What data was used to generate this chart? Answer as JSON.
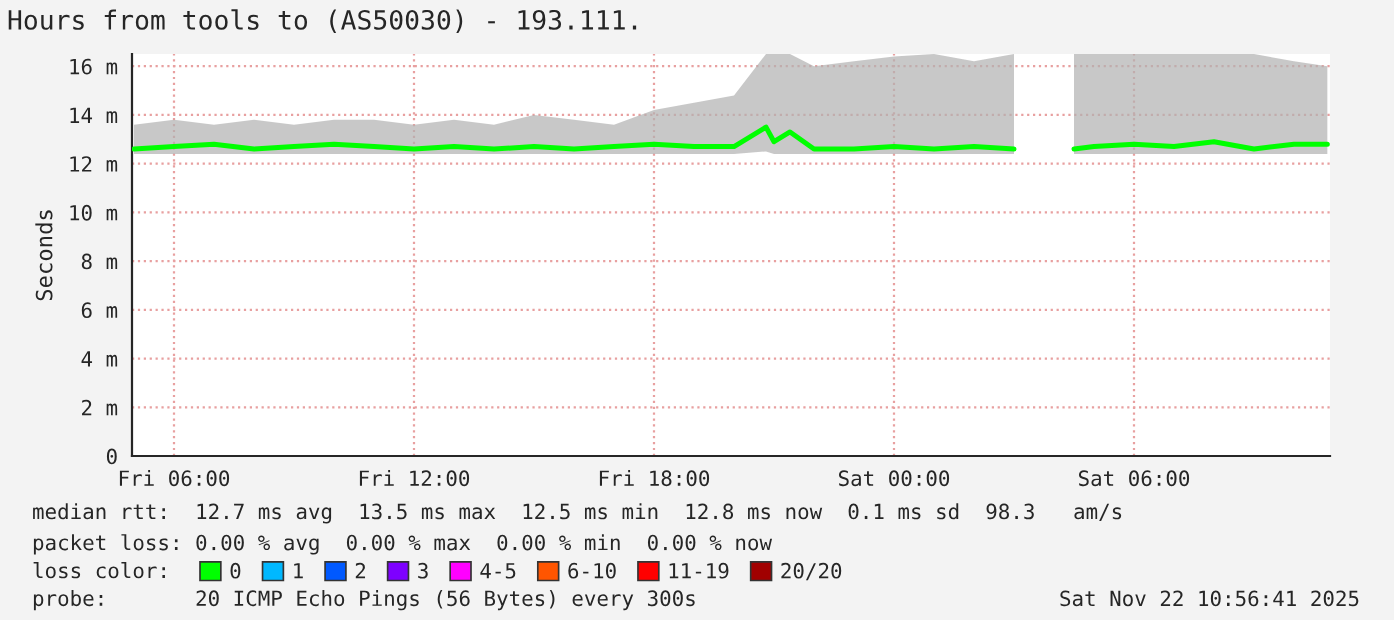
{
  "chart_data": {
    "type": "line",
    "title": "Hours from tools to (AS50030) - 193.111.",
    "ylabel": "Seconds",
    "x": [
      "2025-11-21T05:00",
      "2025-11-21T06:00",
      "2025-11-21T07:00",
      "2025-11-21T08:00",
      "2025-11-21T09:00",
      "2025-11-21T10:00",
      "2025-11-21T11:00",
      "2025-11-21T12:00",
      "2025-11-21T13:00",
      "2025-11-21T14:00",
      "2025-11-21T15:00",
      "2025-11-21T16:00",
      "2025-11-21T17:00",
      "2025-11-21T18:00",
      "2025-11-21T19:00",
      "2025-11-21T20:00",
      "2025-11-21T20:48",
      "2025-11-21T21:00",
      "2025-11-21T21:24",
      "2025-11-21T22:00",
      "2025-11-21T23:00",
      "2025-11-22T00:00",
      "2025-11-22T01:00",
      "2025-11-22T02:00",
      "2025-11-22T03:00",
      "2025-11-22T04:00",
      "2025-11-22T04:30",
      "2025-11-22T05:00",
      "2025-11-22T06:00",
      "2025-11-22T07:00",
      "2025-11-22T08:00",
      "2025-11-22T09:00",
      "2025-11-22T10:00",
      "2025-11-22T10:50"
    ],
    "series": [
      {
        "name": "0",
        "color": "#00ff00",
        "values": [
          12.6,
          12.7,
          12.8,
          12.6,
          12.7,
          12.8,
          12.7,
          12.6,
          12.7,
          12.6,
          12.7,
          12.6,
          12.7,
          12.8,
          12.7,
          12.7,
          13.5,
          12.9,
          13.3,
          12.6,
          12.6,
          12.7,
          12.6,
          12.7,
          12.6,
          null,
          12.6,
          12.7,
          12.8,
          12.7,
          12.9,
          12.6,
          12.8,
          12.8
        ],
        "lower": [
          12.4,
          12.4,
          12.4,
          12.4,
          12.4,
          12.4,
          12.4,
          12.4,
          12.4,
          12.4,
          12.4,
          12.4,
          12.4,
          12.4,
          12.4,
          12.4,
          12.5,
          12.4,
          12.4,
          12.4,
          12.4,
          12.4,
          12.4,
          12.4,
          12.4,
          null,
          12.4,
          12.4,
          12.4,
          12.4,
          12.4,
          12.4,
          12.4,
          12.4
        ],
        "upper": [
          13.6,
          13.8,
          13.6,
          13.8,
          13.6,
          13.8,
          13.8,
          13.6,
          13.8,
          13.6,
          14.0,
          13.8,
          13.6,
          14.2,
          14.5,
          14.8,
          16.5,
          16.5,
          16.5,
          16.0,
          16.2,
          16.4,
          16.5,
          16.2,
          16.5,
          null,
          16.5,
          16.5,
          16.5,
          16.5,
          16.5,
          16.5,
          16.2,
          16.0
        ]
      },
      {
        "name": "1",
        "color": "#00b8ff",
        "values": [
          null,
          null,
          null,
          null,
          null,
          null,
          null,
          null,
          null,
          null,
          null,
          null,
          null,
          null,
          null,
          null,
          null,
          null,
          null,
          null,
          null,
          null,
          null,
          null,
          null,
          null,
          null,
          null,
          null,
          null,
          null,
          null,
          null,
          null
        ]
      },
      {
        "name": "2",
        "color": "#0059ff",
        "values": [
          null,
          null,
          null,
          null,
          null,
          null,
          null,
          null,
          null,
          null,
          null,
          null,
          null,
          null,
          null,
          null,
          null,
          null,
          null,
          null,
          null,
          null,
          null,
          null,
          null,
          null,
          null,
          null,
          null,
          null,
          null,
          null,
          null,
          null
        ]
      },
      {
        "name": "3",
        "color": "#7e00ff",
        "values": [
          null,
          null,
          null,
          null,
          null,
          null,
          null,
          null,
          null,
          null,
          null,
          null,
          null,
          null,
          null,
          null,
          null,
          null,
          null,
          null,
          null,
          null,
          null,
          null,
          null,
          null,
          null,
          null,
          null,
          null,
          null,
          null,
          null,
          null
        ]
      },
      {
        "name": "4-5",
        "color": "#ff00ff",
        "values": [
          null,
          null,
          null,
          null,
          null,
          null,
          null,
          null,
          null,
          null,
          null,
          null,
          null,
          null,
          null,
          null,
          null,
          null,
          null,
          null,
          null,
          null,
          null,
          null,
          null,
          null,
          null,
          null,
          null,
          null,
          null,
          null,
          null,
          null
        ]
      },
      {
        "name": "6-10",
        "color": "#ff5500",
        "values": [
          null,
          null,
          null,
          null,
          null,
          null,
          null,
          null,
          null,
          null,
          null,
          null,
          null,
          null,
          null,
          null,
          null,
          null,
          null,
          null,
          null,
          null,
          null,
          null,
          null,
          null,
          null,
          null,
          null,
          null,
          null,
          null,
          null,
          null
        ]
      },
      {
        "name": "11-19",
        "color": "#ff0000",
        "values": [
          null,
          null,
          null,
          null,
          null,
          null,
          null,
          null,
          null,
          null,
          null,
          null,
          null,
          null,
          null,
          null,
          null,
          null,
          null,
          null,
          null,
          null,
          null,
          null,
          null,
          null,
          null,
          null,
          null,
          null,
          null,
          null,
          null,
          null
        ]
      },
      {
        "name": "20/20",
        "color": "#a10000",
        "values": [
          null,
          null,
          null,
          null,
          null,
          null,
          null,
          null,
          null,
          null,
          null,
          null,
          null,
          null,
          null,
          null,
          null,
          null,
          null,
          null,
          null,
          null,
          null,
          null,
          null,
          null,
          null,
          null,
          null,
          null,
          null,
          null,
          null,
          null
        ]
      }
    ],
    "legend_title": "loss color:",
    "legend": "bottom",
    "xlim": [
      "2025-11-21T04:57",
      "2025-11-22T10:54"
    ],
    "xticks": [
      {
        "value": "2025-11-21T06:00",
        "label": "Fri 06:00"
      },
      {
        "value": "2025-11-21T12:00",
        "label": "Fri 12:00"
      },
      {
        "value": "2025-11-21T18:00",
        "label": "Fri 18:00"
      },
      {
        "value": "2025-11-22T00:00",
        "label": "Sat 00:00"
      },
      {
        "value": "2025-11-22T06:00",
        "label": "Sat 06:00"
      }
    ],
    "ylim": [
      0,
      16.5
    ],
    "yticks": [
      0,
      {
        "value": 2,
        "label": "2 m"
      },
      {
        "value": 4,
        "label": "4 m"
      },
      {
        "value": 6,
        "label": "6 m"
      },
      {
        "value": 8,
        "label": "8 m"
      },
      {
        "value": 10,
        "label": "10 m"
      },
      {
        "value": 12,
        "label": "12 m"
      },
      {
        "value": 14,
        "label": "14 m"
      },
      {
        "value": 16,
        "label": "16 m"
      }
    ],
    "grid": true,
    "annotations": [
      "median rtt:  12.7 ms avg  13.5 ms max  12.5 ms min  12.8 ms now  0.1 ms sd  98.3   am/s",
      "packet loss: 0.00 % avg  0.00 % max  0.00 % min  0.00 % now",
      "probe:       20 ICMP Echo Pings (56 Bytes) every 300s",
      "Sat Nov 22 10:56:41 2025"
    ]
  }
}
